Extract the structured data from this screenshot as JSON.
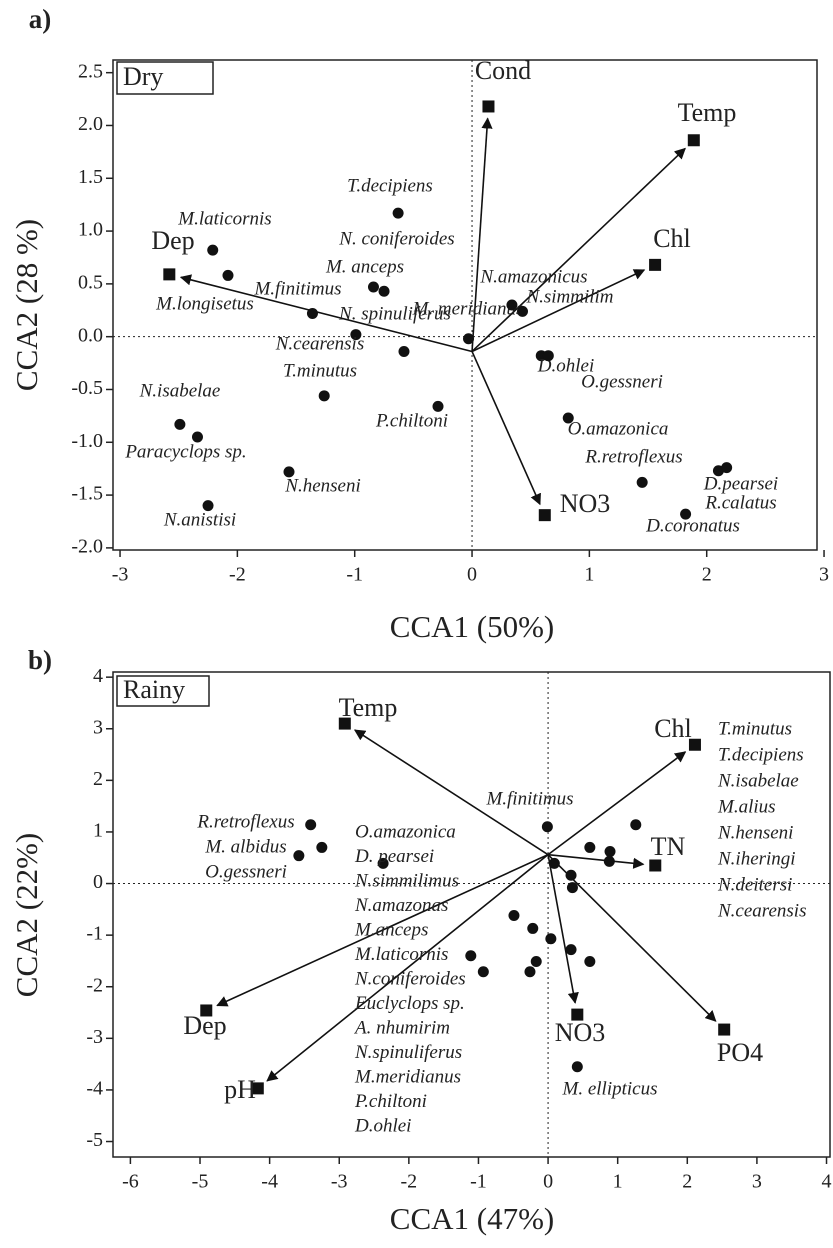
{
  "chart_data": [
    {
      "type": "scatter",
      "panel_label": "a)",
      "box_label": "Dry",
      "xlabel": "CCA1 (50%)",
      "ylabel": "CCA2 (28 %)",
      "xlim": [
        -3.06,
        2.94
      ],
      "ylim": [
        -2.02,
        2.62
      ],
      "xticks": [
        -3,
        -2,
        -1,
        0,
        1,
        2,
        3
      ],
      "yticks": [
        {
          "value": -2,
          "label": "-2.0"
        },
        -1.5,
        {
          "value": -1,
          "label": "-1.0"
        },
        -0.5,
        {
          "value": 0,
          "label": "0.0"
        },
        0.5,
        {
          "value": 1,
          "label": "1.0"
        },
        1.5,
        {
          "value": 2,
          "label": "2.0"
        },
        2.5
      ],
      "zero_lines": true,
      "species": {
        "x": [
          -2.21,
          -2.08,
          -0.63,
          -0.84,
          -0.75,
          -1.36,
          -0.99,
          -0.03,
          -0.58,
          -1.26,
          -0.29,
          -2.49,
          -2.34,
          -1.56,
          -2.25,
          0.34,
          0.43,
          0.59,
          0.65,
          0.82,
          1.45,
          2.1,
          2.17,
          1.82
        ],
        "y": [
          0.82,
          0.58,
          1.17,
          0.47,
          0.43,
          0.22,
          0.02,
          -0.02,
          -0.14,
          -0.56,
          -0.66,
          -0.83,
          -0.95,
          -1.28,
          -1.6,
          0.3,
          0.24,
          -0.18,
          -0.18,
          -0.77,
          -1.38,
          -1.27,
          -1.24,
          -1.68
        ],
        "labels": [
          "M.laticornis",
          "M.longisetus",
          "T.decipiens",
          "N. coniferoides",
          "M. anceps",
          "M.finitimus",
          "N. spinuliferus",
          "M. meridianus",
          "N.cearensis",
          "T.minutus",
          "P.chiltoni",
          "N.isabelae",
          "Paracyclops sp.",
          "N.henseni",
          "N.anistisi",
          "N.amazonicus",
          "N.simmilim",
          "D.ohlei",
          "O.gessneri",
          "O.amazonica",
          "R.retroflexus",
          "D.pearsei",
          "R.calatus",
          "D.coronatus"
        ]
      },
      "arrow_origin": {
        "x": 0,
        "y": -0.14
      },
      "variables": {
        "names": [
          "Cond",
          "Temp",
          "Chl",
          "Dep",
          "NO3"
        ],
        "x": [
          0.14,
          1.89,
          1.56,
          -2.58,
          0.62
        ],
        "y": [
          2.18,
          1.86,
          0.68,
          0.59,
          -1.69
        ]
      }
    },
    {
      "type": "scatter",
      "panel_label": "b)",
      "box_label": "Rainy",
      "xlabel": "CCA1 (47%)",
      "ylabel": "CCA2 (22%)",
      "xlim": [
        -6.25,
        4.05
      ],
      "ylim": [
        -5.3,
        4.1
      ],
      "xticks": [
        -6,
        -5,
        -4,
        -3,
        -2,
        -1,
        0,
        1,
        2,
        3,
        4
      ],
      "yticks": [
        -5,
        -4,
        -3,
        -2,
        -1,
        0,
        1,
        2,
        3,
        4
      ],
      "zero_lines": true,
      "species": {
        "x": [
          -3.41,
          -3.25,
          -3.58,
          -2.37,
          -0.01,
          0.09,
          0.6,
          0.89,
          1.26,
          0.88,
          0.33,
          0.35,
          -0.49,
          -0.22,
          0.04,
          -1.11,
          -0.93,
          -0.17,
          -0.26,
          0.33,
          0.6,
          0.42
        ],
        "y": [
          1.14,
          0.7,
          0.54,
          0.39,
          1.1,
          0.39,
          0.7,
          0.62,
          1.14,
          0.43,
          0.16,
          -0.08,
          -0.62,
          -0.87,
          -1.07,
          -1.4,
          -1.71,
          -1.51,
          -1.71,
          -1.28,
          -1.51,
          -3.55
        ],
        "labels": [
          null,
          null,
          null,
          null,
          "M.finitimus",
          null,
          null,
          null,
          null,
          null,
          null,
          null,
          null,
          null,
          null,
          null,
          null,
          null,
          null,
          null,
          null,
          "M. ellipticus"
        ]
      },
      "species_groups": [
        [
          "R.retroflexus",
          "M. albidus",
          "O.gessneri"
        ],
        [
          "O.amazonica",
          "D. pearsei",
          "N.simmilimus",
          "N.amazonas",
          "M.anceps",
          "M.laticornis",
          "N.coniferoides",
          "Euclyclops sp.",
          "A. nhumirim",
          "N.spinuliferus",
          "M.meridianus",
          "P.chiltoni",
          "D.ohlei"
        ],
        [
          "T.minutus",
          "T.decipiens",
          "N.isabelae",
          "M.alius",
          "N.henseni",
          "N.iheringi",
          "N.deitersi",
          "N.cearensis"
        ]
      ],
      "arrow_origin": {
        "x": 0,
        "y": 0.56
      },
      "variables": {
        "names": [
          "Temp",
          "Chl",
          "TN",
          "PO4",
          "NO3",
          "Dep",
          "pH"
        ],
        "x": [
          -2.92,
          2.11,
          1.54,
          2.53,
          0.42,
          -4.91,
          -4.17
        ],
        "y": [
          3.1,
          2.69,
          0.35,
          -2.83,
          -2.54,
          -2.46,
          -3.97
        ]
      }
    }
  ]
}
